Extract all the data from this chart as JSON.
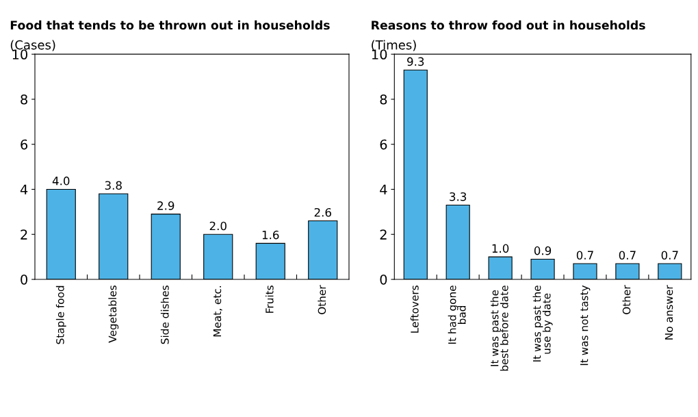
{
  "chart_data": [
    {
      "type": "bar",
      "title": "Food that tends to be thrown out in households",
      "ylabel": "(Cases)",
      "categories": [
        "Staple food",
        "Vegetables",
        "Side dishes",
        "Meat, etc.",
        "Fruits",
        "Other"
      ],
      "values": [
        4.0,
        3.8,
        2.9,
        2.0,
        1.6,
        2.6
      ],
      "value_labels": [
        "4.0",
        "3.8",
        "2.9",
        "2.0",
        "1.6",
        "2.6"
      ],
      "color": "#4db3e6",
      "ylim": [
        0,
        10
      ],
      "yticks": [
        0,
        2,
        4,
        6,
        8,
        10
      ],
      "grid": false,
      "legend": false
    },
    {
      "type": "bar",
      "title": "Reasons to throw food out in households",
      "ylabel": "(Times)",
      "categories": [
        "Leftovers",
        "It had gone\nbad",
        "It was past the\nbest before date",
        "It was past the\nuse by date",
        "It was not tasty",
        "Other",
        "No answer"
      ],
      "values": [
        9.3,
        3.3,
        1.0,
        0.9,
        0.7,
        0.7,
        0.7
      ],
      "value_labels": [
        "9.3",
        "3.3",
        "1.0",
        "0.9",
        "0.7",
        "0.7",
        "0.7"
      ],
      "color": "#4db3e6",
      "ylim": [
        0,
        10
      ],
      "yticks": [
        0,
        2,
        4,
        6,
        8,
        10
      ],
      "grid": false,
      "legend": false
    }
  ]
}
